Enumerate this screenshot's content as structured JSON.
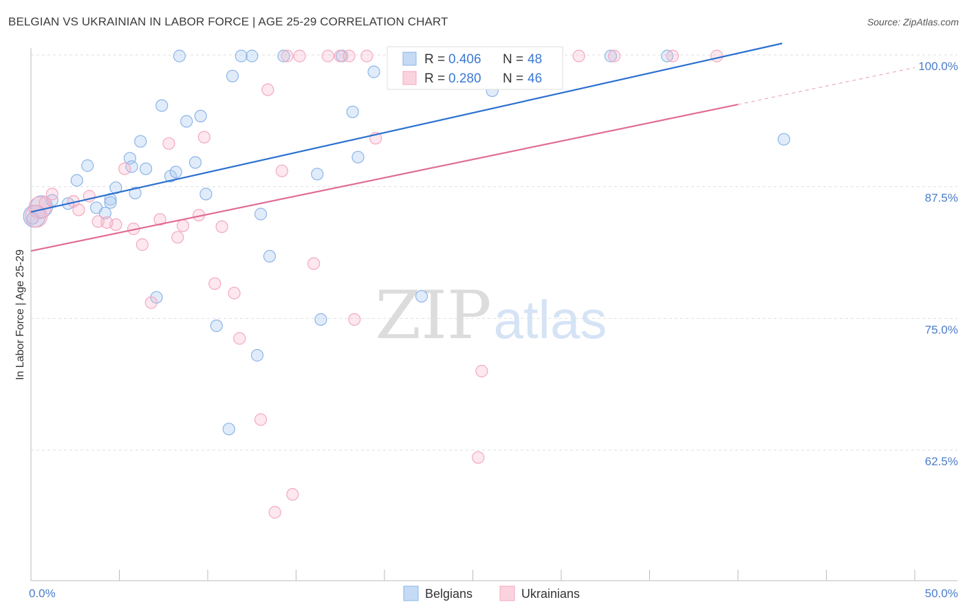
{
  "title": "BELGIAN VS UKRAINIAN IN LABOR FORCE | AGE 25-29 CORRELATION CHART",
  "source": "Source: ZipAtlas.com",
  "watermark": {
    "zip": "ZIP",
    "atlas": "atlas"
  },
  "chart_data": {
    "type": "scatter",
    "title": "BELGIAN VS UKRAINIAN IN LABOR FORCE | AGE 25-29 CORRELATION CHART",
    "ylabel": "In Labor Force | Age 25-29",
    "xlim": [
      0,
      50
    ],
    "ylim": [
      51,
      101.5
    ],
    "x_tick_labels": [
      {
        "value": 0,
        "label": "0.0%"
      },
      {
        "value": 50,
        "label": "50.0%"
      }
    ],
    "y_tick_labels": [
      {
        "value": 100,
        "label": "100.0%"
      },
      {
        "value": 87.5,
        "label": "87.5%"
      },
      {
        "value": 75,
        "label": "75.0%"
      },
      {
        "value": 62.5,
        "label": "62.5%"
      }
    ],
    "grid": true,
    "legend": {
      "placement": "top-center",
      "entries": [
        {
          "r_label": "R = ",
          "r_value": "0.406",
          "n_label": "N = ",
          "n_value": "48"
        },
        {
          "r_label": "R = ",
          "r_value": "0.280",
          "n_label": "N = ",
          "n_value": "46"
        }
      ]
    },
    "series": [
      {
        "name": "Belgians",
        "color": "#8ab4e8",
        "line_color": "#2a6fcf",
        "trend": {
          "x": [
            0,
            42.5
          ],
          "y": [
            85.1,
            101.1
          ]
        },
        "points": [
          [
            0.2,
            84.7
          ],
          [
            0.6,
            85.6
          ],
          [
            1.2,
            86.2
          ],
          [
            2.6,
            88.1
          ],
          [
            3.2,
            89.5
          ],
          [
            3.7,
            85.5
          ],
          [
            4.2,
            85.0
          ],
          [
            4.5,
            86.3
          ],
          [
            4.5,
            86.0
          ],
          [
            4.8,
            87.4
          ],
          [
            5.6,
            90.2
          ],
          [
            5.7,
            89.4
          ],
          [
            5.9,
            86.9
          ],
          [
            6.2,
            91.8
          ],
          [
            6.5,
            89.2
          ],
          [
            7.1,
            77.0
          ],
          [
            7.4,
            95.2
          ],
          [
            7.9,
            88.5
          ],
          [
            8.2,
            88.9
          ],
          [
            8.8,
            93.7
          ],
          [
            9.3,
            89.8
          ],
          [
            9.6,
            94.2
          ],
          [
            9.9,
            86.8
          ],
          [
            10.5,
            74.3
          ],
          [
            11.2,
            64.5
          ],
          [
            11.4,
            98.0
          ],
          [
            11.9,
            99.9
          ],
          [
            12.5,
            99.9
          ],
          [
            12.8,
            71.5
          ],
          [
            13.0,
            84.9
          ],
          [
            13.5,
            80.9
          ],
          [
            14.3,
            99.9
          ],
          [
            16.2,
            88.7
          ],
          [
            16.4,
            74.9
          ],
          [
            17.6,
            99.9
          ],
          [
            18.2,
            94.6
          ],
          [
            18.5,
            90.3
          ],
          [
            19.4,
            98.4
          ],
          [
            22.1,
            77.1
          ],
          [
            23.6,
            99.9
          ],
          [
            26.1,
            96.6
          ],
          [
            26.9,
            99.9
          ],
          [
            32.8,
            99.9
          ],
          [
            36.0,
            99.9
          ],
          [
            42.6,
            92.0
          ],
          [
            0.1,
            84.5
          ],
          [
            2.1,
            85.9
          ],
          [
            8.4,
            99.9
          ]
        ]
      },
      {
        "name": "Ukrainians",
        "color": "#f4a7bf",
        "line_color": "#e06b96",
        "trend": {
          "x": [
            0,
            40
          ],
          "y": [
            81.4,
            95.3
          ]
        },
        "trend_dashed": {
          "x": [
            40,
            50
          ],
          "y": [
            95.3,
            98.8
          ]
        },
        "points": [
          [
            0.3,
            84.7
          ],
          [
            0.8,
            86.0
          ],
          [
            1.2,
            86.8
          ],
          [
            2.4,
            86.1
          ],
          [
            2.7,
            85.3
          ],
          [
            3.3,
            86.6
          ],
          [
            3.8,
            84.2
          ],
          [
            4.3,
            84.1
          ],
          [
            4.8,
            83.9
          ],
          [
            5.3,
            89.2
          ],
          [
            5.8,
            83.5
          ],
          [
            6.3,
            82.0
          ],
          [
            6.8,
            76.5
          ],
          [
            7.3,
            84.4
          ],
          [
            7.8,
            91.6
          ],
          [
            8.3,
            82.7
          ],
          [
            8.6,
            83.8
          ],
          [
            9.5,
            84.8
          ],
          [
            9.8,
            92.2
          ],
          [
            10.4,
            78.3
          ],
          [
            10.8,
            83.7
          ],
          [
            11.5,
            77.4
          ],
          [
            11.8,
            73.1
          ],
          [
            13.0,
            65.4
          ],
          [
            13.4,
            96.7
          ],
          [
            13.8,
            56.6
          ],
          [
            14.2,
            89.0
          ],
          [
            14.8,
            58.3
          ],
          [
            15.2,
            99.9
          ],
          [
            16.0,
            80.2
          ],
          [
            16.8,
            99.9
          ],
          [
            17.5,
            99.9
          ],
          [
            18.0,
            99.9
          ],
          [
            18.3,
            74.9
          ],
          [
            19.5,
            92.1
          ],
          [
            23.5,
            99.9
          ],
          [
            24.0,
            99.9
          ],
          [
            25.5,
            70.0
          ],
          [
            25.3,
            61.8
          ],
          [
            31.0,
            99.9
          ],
          [
            33.0,
            99.9
          ],
          [
            36.3,
            99.9
          ],
          [
            38.8,
            99.9
          ],
          [
            14.5,
            99.9
          ],
          [
            19.0,
            99.9
          ],
          [
            0.5,
            85.5
          ]
        ]
      }
    ]
  }
}
